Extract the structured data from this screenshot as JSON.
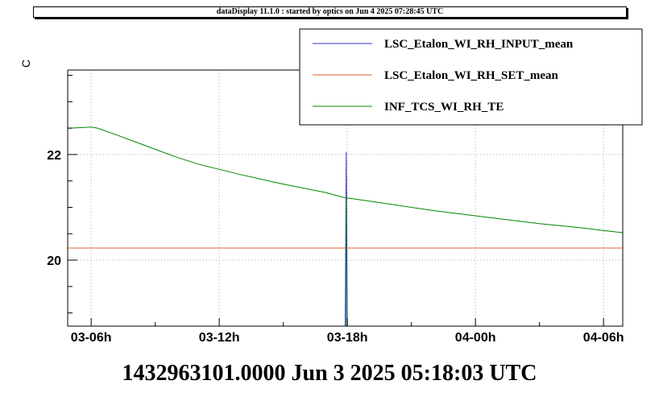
{
  "header": {
    "title": "dataDisplay 11.1.0 : started by optics on Jun  4 2025 07:28:45 UTC"
  },
  "footer": {
    "timestamp": "1432963101.0000 Jun 3 2025 05:18:03 UTC"
  },
  "chart_data": {
    "type": "line",
    "ylabel": "C",
    "xlabel": "",
    "xlim": [
      4.9,
      30.9
    ],
    "ylim": [
      18.75,
      23.6
    ],
    "x_ticks": [
      {
        "x": 6,
        "label": "03-06h"
      },
      {
        "x": 12,
        "label": "03-12h"
      },
      {
        "x": 18,
        "label": "03-18h"
      },
      {
        "x": 24,
        "label": "04-00h"
      },
      {
        "x": 30,
        "label": "04-06h"
      }
    ],
    "y_ticks": [
      {
        "y": 20,
        "label": "20"
      },
      {
        "y": 22,
        "label": "22"
      }
    ],
    "grid": true,
    "legend_position": "top-right",
    "series": [
      {
        "name": "LSC_Etalon_WI_RH_INPUT_mean",
        "color": "#3333cc",
        "x": [
          17.9,
          17.95,
          18.0
        ],
        "y": [
          18.75,
          22.05,
          18.75
        ]
      },
      {
        "name": "LSC_Etalon_WI_RH_SET_mean",
        "color": "#e0622a",
        "x": [
          4.9,
          30.9
        ],
        "y": [
          20.23,
          20.23
        ]
      },
      {
        "name": "INF_TCS_WI_RH_TE",
        "color": "#008800",
        "x": [
          4.9,
          5.0,
          5.5,
          6.0,
          6.3,
          7.0,
          8.0,
          9.0,
          10.0,
          11.0,
          12.0,
          13.0,
          14.0,
          15.0,
          16.0,
          17.0,
          17.9,
          18.0,
          19.0,
          20.0,
          21.0,
          22.0,
          23.0,
          24.0,
          25.0,
          26.0,
          27.0,
          28.0,
          29.0,
          30.0,
          30.9
        ],
        "y": [
          22.5,
          22.5,
          22.51,
          22.52,
          22.5,
          22.4,
          22.25,
          22.1,
          21.95,
          21.82,
          21.72,
          21.62,
          21.53,
          21.44,
          21.36,
          21.28,
          21.18,
          21.18,
          21.12,
          21.06,
          21.0,
          20.94,
          20.89,
          20.84,
          20.79,
          20.74,
          20.69,
          20.65,
          20.61,
          20.56,
          20.52
        ]
      }
    ]
  }
}
